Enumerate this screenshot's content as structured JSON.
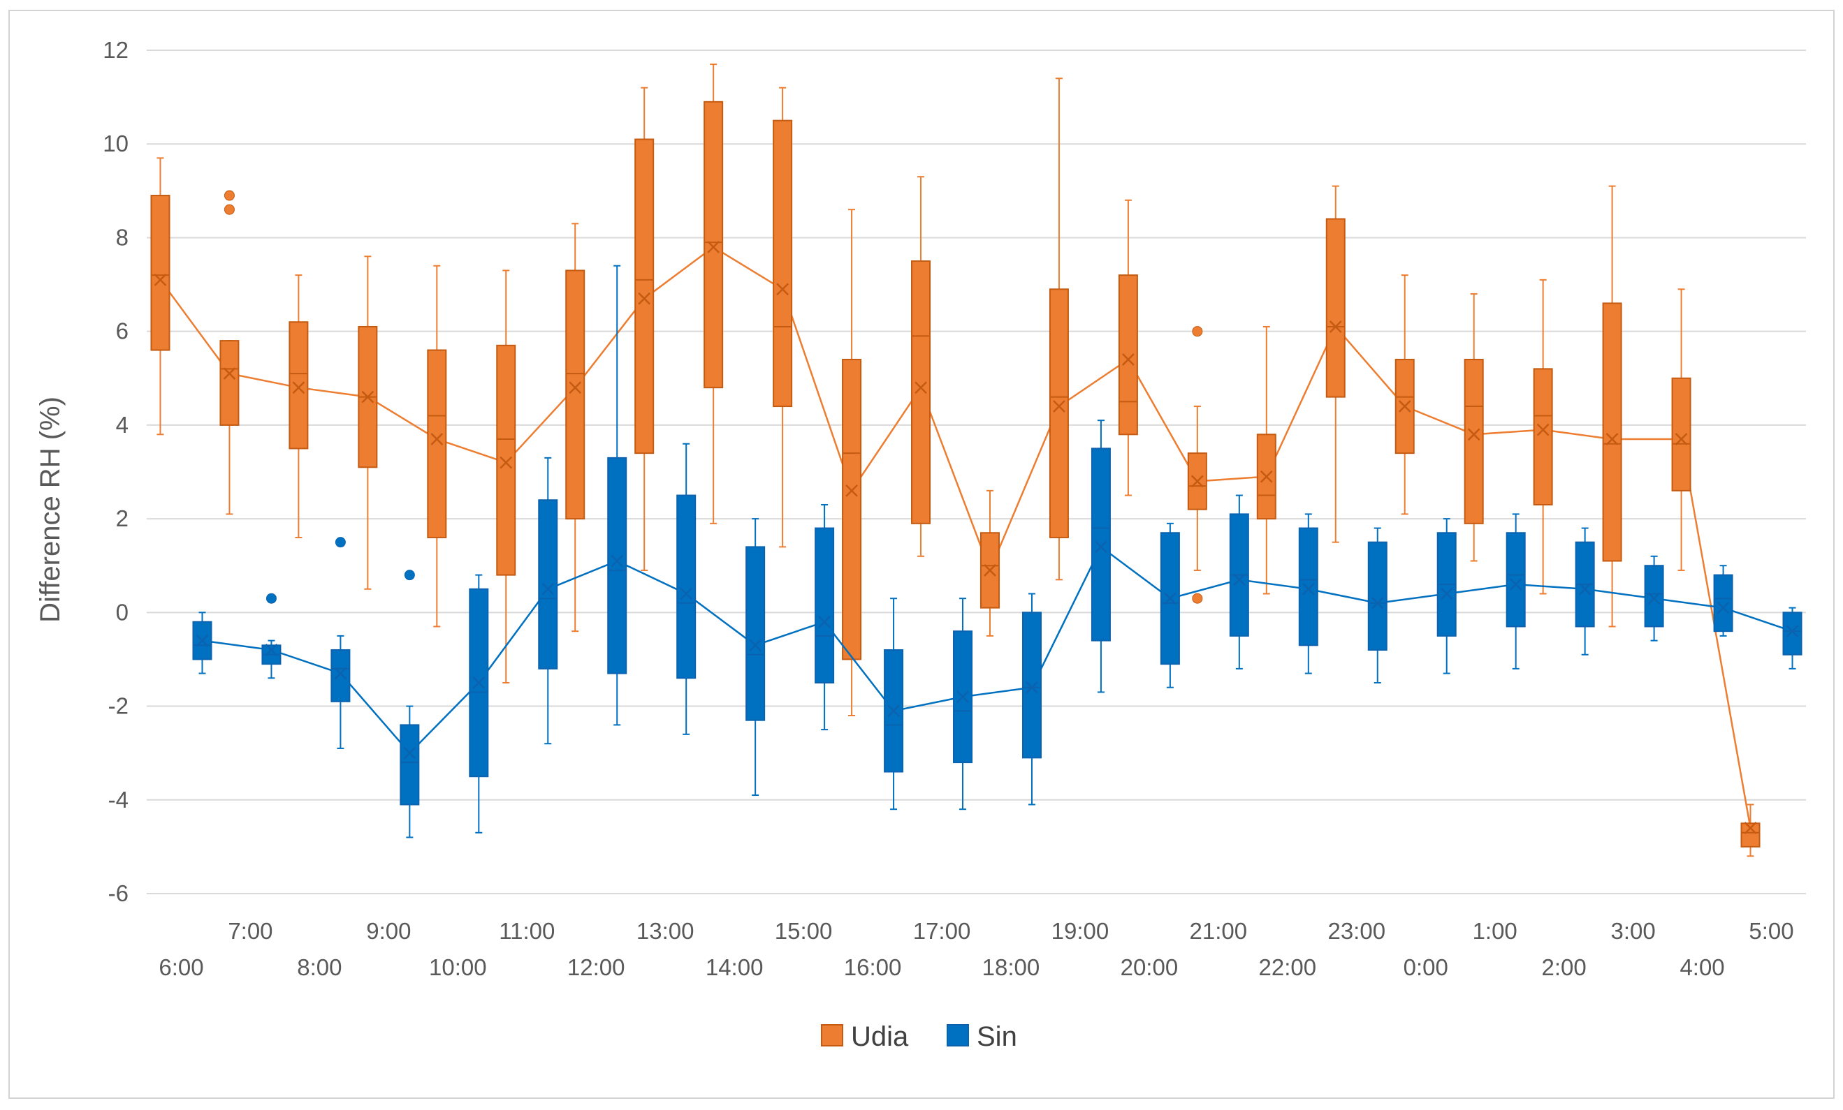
{
  "chart_data": {
    "type": "boxplot",
    "title": "",
    "xlabel": "",
    "ylabel": "Difference RH (%)",
    "ylim": [
      -6,
      12
    ],
    "yticks": [
      "-6",
      "-4",
      "-2",
      "0",
      "2",
      "4",
      "6",
      "8",
      "10",
      "12"
    ],
    "ytick_values": [
      -6,
      -4,
      -2,
      0,
      2,
      4,
      6,
      8,
      10,
      12
    ],
    "grid": true,
    "legend_position": "bottom-center",
    "categories": [
      "6:00",
      "7:00",
      "8:00",
      "9:00",
      "10:00",
      "11:00",
      "12:00",
      "13:00",
      "14:00",
      "15:00",
      "16:00",
      "17:00",
      "18:00",
      "19:00",
      "20:00",
      "21:00",
      "22:00",
      "23:00",
      "0:00",
      "1:00",
      "2:00",
      "3:00",
      "4:00",
      "5:00"
    ],
    "series": [
      {
        "name": "Udia",
        "color": "#ed7d31",
        "stroke": "#c55a11",
        "boxes": [
          {
            "min": 3.8,
            "q1": 5.6,
            "median": 7.2,
            "q3": 8.9,
            "max": 9.7,
            "mean": 7.1,
            "outliers": []
          },
          {
            "min": 2.1,
            "q1": 4.0,
            "median": 5.2,
            "q3": 5.8,
            "max": 5.8,
            "mean": 5.1,
            "outliers": [
              8.9,
              8.6
            ]
          },
          {
            "min": 1.6,
            "q1": 3.5,
            "median": 5.1,
            "q3": 6.2,
            "max": 7.2,
            "mean": 4.8,
            "outliers": []
          },
          {
            "min": 0.5,
            "q1": 3.1,
            "median": 4.6,
            "q3": 6.1,
            "max": 7.6,
            "mean": 4.6,
            "outliers": []
          },
          {
            "min": -0.3,
            "q1": 1.6,
            "median": 4.2,
            "q3": 5.6,
            "max": 7.4,
            "mean": 3.7,
            "outliers": []
          },
          {
            "min": -1.5,
            "q1": 0.8,
            "median": 3.7,
            "q3": 5.7,
            "max": 7.3,
            "mean": 3.2,
            "outliers": []
          },
          {
            "min": -0.4,
            "q1": 2.0,
            "median": 5.1,
            "q3": 7.3,
            "max": 8.3,
            "mean": 4.8,
            "outliers": []
          },
          {
            "min": 0.9,
            "q1": 3.4,
            "median": 7.1,
            "q3": 10.1,
            "max": 11.2,
            "mean": 6.7,
            "outliers": []
          },
          {
            "min": 1.9,
            "q1": 4.8,
            "median": 7.9,
            "q3": 10.9,
            "max": 11.7,
            "mean": 7.8,
            "outliers": []
          },
          {
            "min": 1.4,
            "q1": 4.4,
            "median": 6.1,
            "q3": 10.5,
            "max": 11.2,
            "mean": 6.9,
            "outliers": []
          },
          {
            "min": -2.2,
            "q1": -1.0,
            "median": 3.4,
            "q3": 5.4,
            "max": 8.6,
            "mean": 2.6,
            "outliers": []
          },
          {
            "min": 1.2,
            "q1": 1.9,
            "median": 5.9,
            "q3": 7.5,
            "max": 9.3,
            "mean": 4.8,
            "outliers": []
          },
          {
            "min": -0.5,
            "q1": 0.1,
            "median": 1.0,
            "q3": 1.7,
            "max": 2.6,
            "mean": 0.9,
            "outliers": []
          },
          {
            "min": 0.7,
            "q1": 1.6,
            "median": 4.6,
            "q3": 6.9,
            "max": 11.4,
            "mean": 4.4,
            "outliers": []
          },
          {
            "min": 2.5,
            "q1": 3.8,
            "median": 4.5,
            "q3": 7.2,
            "max": 8.8,
            "mean": 5.4,
            "outliers": []
          },
          {
            "min": 0.9,
            "q1": 2.2,
            "median": 2.7,
            "q3": 3.4,
            "max": 4.4,
            "mean": 2.8,
            "outliers": [
              6.0,
              0.3
            ]
          },
          {
            "min": 0.4,
            "q1": 2.0,
            "median": 2.5,
            "q3": 3.8,
            "max": 6.1,
            "mean": 2.9,
            "outliers": []
          },
          {
            "min": 1.5,
            "q1": 4.6,
            "median": 6.1,
            "q3": 8.4,
            "max": 9.1,
            "mean": 6.1,
            "outliers": []
          },
          {
            "min": 2.1,
            "q1": 3.4,
            "median": 4.6,
            "q3": 5.4,
            "max": 7.2,
            "mean": 4.4,
            "outliers": []
          },
          {
            "min": 1.1,
            "q1": 1.9,
            "median": 4.4,
            "q3": 5.4,
            "max": 6.8,
            "mean": 3.8,
            "outliers": []
          },
          {
            "min": 0.4,
            "q1": 2.3,
            "median": 4.2,
            "q3": 5.2,
            "max": 7.1,
            "mean": 3.9,
            "outliers": []
          },
          {
            "min": -0.3,
            "q1": 1.1,
            "median": 3.6,
            "q3": 6.6,
            "max": 9.1,
            "mean": 3.7,
            "outliers": []
          },
          {
            "min": 0.9,
            "q1": 2.6,
            "median": 3.6,
            "q3": 5.0,
            "max": 6.9,
            "mean": 3.7,
            "outliers": []
          },
          {
            "min": -5.2,
            "q1": -5.0,
            "median": -4.7,
            "q3": -4.5,
            "max": -4.1,
            "mean": -4.6,
            "outliers": []
          }
        ]
      },
      {
        "name": "Sin",
        "color": "#0070c0",
        "stroke": "#0b63b0",
        "boxes": [
          {
            "min": -1.3,
            "q1": -1.0,
            "median": -0.7,
            "q3": -0.2,
            "max": 0.0,
            "mean": -0.6,
            "outliers": []
          },
          {
            "min": -1.4,
            "q1": -1.1,
            "median": -0.9,
            "q3": -0.7,
            "max": -0.6,
            "mean": -0.8,
            "outliers": [
              0.3
            ]
          },
          {
            "min": -2.9,
            "q1": -1.9,
            "median": -1.2,
            "q3": -0.8,
            "max": -0.5,
            "mean": -1.3,
            "outliers": [
              1.5
            ]
          },
          {
            "min": -4.8,
            "q1": -4.1,
            "median": -3.2,
            "q3": -2.4,
            "max": -2.0,
            "mean": -3.0,
            "outliers": [
              0.8
            ]
          },
          {
            "min": -4.7,
            "q1": -3.5,
            "median": -1.7,
            "q3": 0.5,
            "max": 0.8,
            "mean": -1.5,
            "outliers": []
          },
          {
            "min": -2.8,
            "q1": -1.2,
            "median": 0.3,
            "q3": 2.4,
            "max": 3.3,
            "mean": 0.5,
            "outliers": []
          },
          {
            "min": -2.4,
            "q1": -1.3,
            "median": 0.9,
            "q3": 3.3,
            "max": 7.4,
            "mean": 1.1,
            "outliers": []
          },
          {
            "min": -2.6,
            "q1": -1.4,
            "median": 0.2,
            "q3": 2.5,
            "max": 3.6,
            "mean": 0.4,
            "outliers": []
          },
          {
            "min": -3.9,
            "q1": -2.3,
            "median": -0.9,
            "q3": 1.4,
            "max": 2.0,
            "mean": -0.7,
            "outliers": []
          },
          {
            "min": -2.5,
            "q1": -1.5,
            "median": -0.5,
            "q3": 1.8,
            "max": 2.3,
            "mean": -0.2,
            "outliers": []
          },
          {
            "min": -4.2,
            "q1": -3.4,
            "median": -2.4,
            "q3": -0.8,
            "max": 0.3,
            "mean": -2.1,
            "outliers": []
          },
          {
            "min": -4.2,
            "q1": -3.2,
            "median": -2.1,
            "q3": -0.4,
            "max": 0.3,
            "mean": -1.8,
            "outliers": []
          },
          {
            "min": -4.1,
            "q1": -3.1,
            "median": -1.6,
            "q3": 0.0,
            "max": 0.4,
            "mean": -1.6,
            "outliers": []
          },
          {
            "min": -1.7,
            "q1": -0.6,
            "median": 1.8,
            "q3": 3.5,
            "max": 4.1,
            "mean": 1.4,
            "outliers": []
          },
          {
            "min": -1.6,
            "q1": -1.1,
            "median": 0.2,
            "q3": 1.7,
            "max": 1.9,
            "mean": 0.3,
            "outliers": []
          },
          {
            "min": -1.2,
            "q1": -0.5,
            "median": 0.8,
            "q3": 2.1,
            "max": 2.5,
            "mean": 0.7,
            "outliers": []
          },
          {
            "min": -1.3,
            "q1": -0.7,
            "median": 0.7,
            "q3": 1.8,
            "max": 2.1,
            "mean": 0.5,
            "outliers": []
          },
          {
            "min": -1.5,
            "q1": -0.8,
            "median": 0.2,
            "q3": 1.5,
            "max": 1.8,
            "mean": 0.2,
            "outliers": []
          },
          {
            "min": -1.3,
            "q1": -0.5,
            "median": 0.6,
            "q3": 1.7,
            "max": 2.0,
            "mean": 0.4,
            "outliers": []
          },
          {
            "min": -1.2,
            "q1": -0.3,
            "median": 0.8,
            "q3": 1.7,
            "max": 2.1,
            "mean": 0.6,
            "outliers": []
          },
          {
            "min": -0.9,
            "q1": -0.3,
            "median": 0.6,
            "q3": 1.5,
            "max": 1.8,
            "mean": 0.5,
            "outliers": []
          },
          {
            "min": -0.6,
            "q1": -0.3,
            "median": 0.4,
            "q3": 1.0,
            "max": 1.2,
            "mean": 0.3,
            "outliers": []
          },
          {
            "min": -0.5,
            "q1": -0.4,
            "median": 0.3,
            "q3": 0.8,
            "max": 1.0,
            "mean": 0.1,
            "outliers": []
          },
          {
            "min": -1.2,
            "q1": -0.9,
            "median": -0.4,
            "q3": 0.0,
            "max": 0.1,
            "mean": -0.4,
            "outliers": []
          }
        ]
      }
    ],
    "legend": [
      "Udia",
      "Sin"
    ]
  }
}
